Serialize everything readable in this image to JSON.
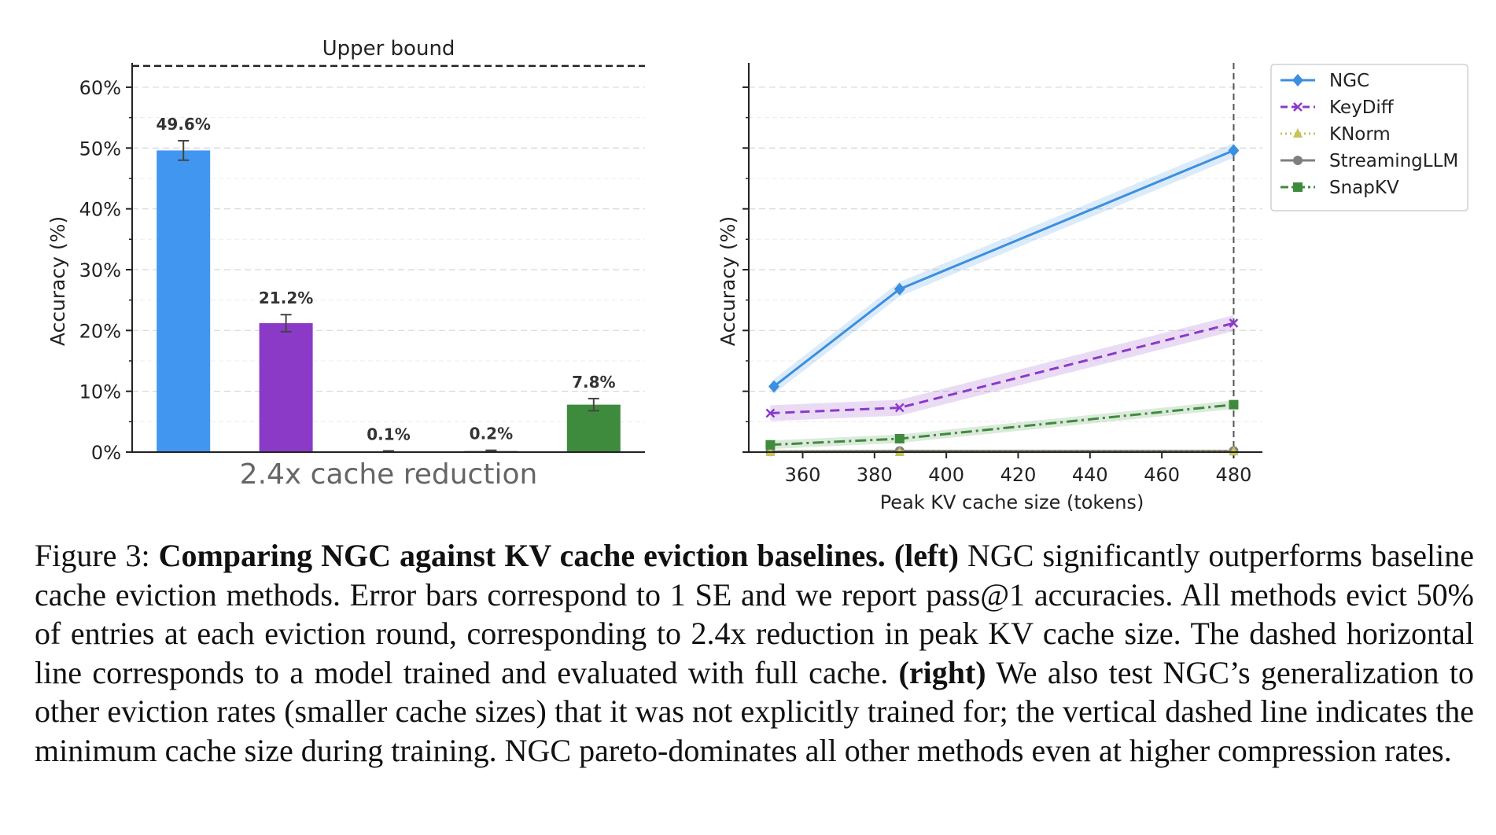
{
  "chart_data": [
    {
      "type": "bar",
      "title": "",
      "xlabel": "2.4x cache reduction",
      "ylabel": "Accuracy (%)",
      "ylim": [
        0,
        64
      ],
      "yticks": [
        0,
        10,
        20,
        30,
        40,
        50,
        60
      ],
      "ytick_labels": [
        "0%",
        "10%",
        "20%",
        "30%",
        "40%",
        "50%",
        "60%"
      ],
      "grid": true,
      "upper_bound": {
        "label": "Upper bound",
        "value": 63.5
      },
      "bars": [
        {
          "series": "NGC",
          "value": 49.6,
          "label": "49.6%",
          "error": 1.6,
          "color": "#4196f0"
        },
        {
          "series": "KeyDiff",
          "value": 21.2,
          "label": "21.2%",
          "error": 1.4,
          "color": "#8b3ac8"
        },
        {
          "series": "KNorm",
          "value": 0.1,
          "label": "0.1%",
          "error": 0.1,
          "color": "#cdc97a"
        },
        {
          "series": "StreamingLLM",
          "value": 0.2,
          "label": "0.2%",
          "error": 0.1,
          "color": "#888888"
        },
        {
          "series": "SnapKV",
          "value": 7.8,
          "label": "7.8%",
          "error": 1.0,
          "color": "#3f8b3e"
        }
      ]
    },
    {
      "type": "line",
      "title": "",
      "xlabel": "Peak KV cache size (tokens)",
      "ylabel": "Accuracy (%)",
      "xlim": [
        345,
        488
      ],
      "ylim": [
        0,
        64
      ],
      "xticks": [
        360,
        380,
        400,
        420,
        440,
        460,
        480
      ],
      "yticks": [
        0,
        10,
        20,
        30,
        40,
        50,
        60
      ],
      "grid": true,
      "legend_position": "top-right",
      "vertical_line": {
        "x": 480,
        "meaning": "minimum cache size during training"
      },
      "series": [
        {
          "name": "NGC",
          "color": "#3b8fe0",
          "dash": "",
          "marker": "diamond",
          "x": [
            352,
            387,
            480
          ],
          "y": [
            10.8,
            26.8,
            49.6
          ],
          "band": 1.2
        },
        {
          "name": "KeyDiff",
          "color": "#8b3ac8",
          "dash": "12,7",
          "marker": "x",
          "x": [
            351,
            387,
            480
          ],
          "y": [
            6.4,
            7.3,
            21.2
          ],
          "band": 1.3
        },
        {
          "name": "KNorm",
          "color": "#c8c35a",
          "dash": "2,5",
          "marker": "triangle",
          "x": [
            351,
            387,
            480
          ],
          "y": [
            0.0,
            0.0,
            0.1
          ],
          "band": 0.2
        },
        {
          "name": "StreamingLLM",
          "color": "#7f7f7f",
          "dash": "",
          "marker": "circle",
          "x": [
            351,
            387,
            480
          ],
          "y": [
            0.1,
            0.2,
            0.2
          ],
          "band": 0.2
        },
        {
          "name": "SnapKV",
          "color": "#3f8b3e",
          "dash": "14,5,3,5",
          "marker": "square",
          "x": [
            351,
            387,
            480
          ],
          "y": [
            1.2,
            2.2,
            7.8
          ],
          "band": 0.7
        }
      ]
    }
  ],
  "caption": {
    "label": "Figure 3: ",
    "bold_title": "Comparing NGC against KV cache eviction baselines. ",
    "left_tag": "(left)",
    "text1": " NGC significantly outperforms baseline cache eviction methods. Error bars correspond to 1 SE and we report pass@1 accuracies. All methods evict 50% of entries at each eviction round, corresponding to 2.4x reduction in peak KV cache size. The dashed horizontal line corresponds to a model trained and evaluated with full cache. ",
    "right_tag": "(right)",
    "text2": " We also test NGC’s generalization to other eviction rates (smaller cache sizes) that it was not explicitly trained for; the vertical dashed line indicates the minimum cache size during training. NGC pareto-dominates all other methods even at higher compression rates."
  }
}
